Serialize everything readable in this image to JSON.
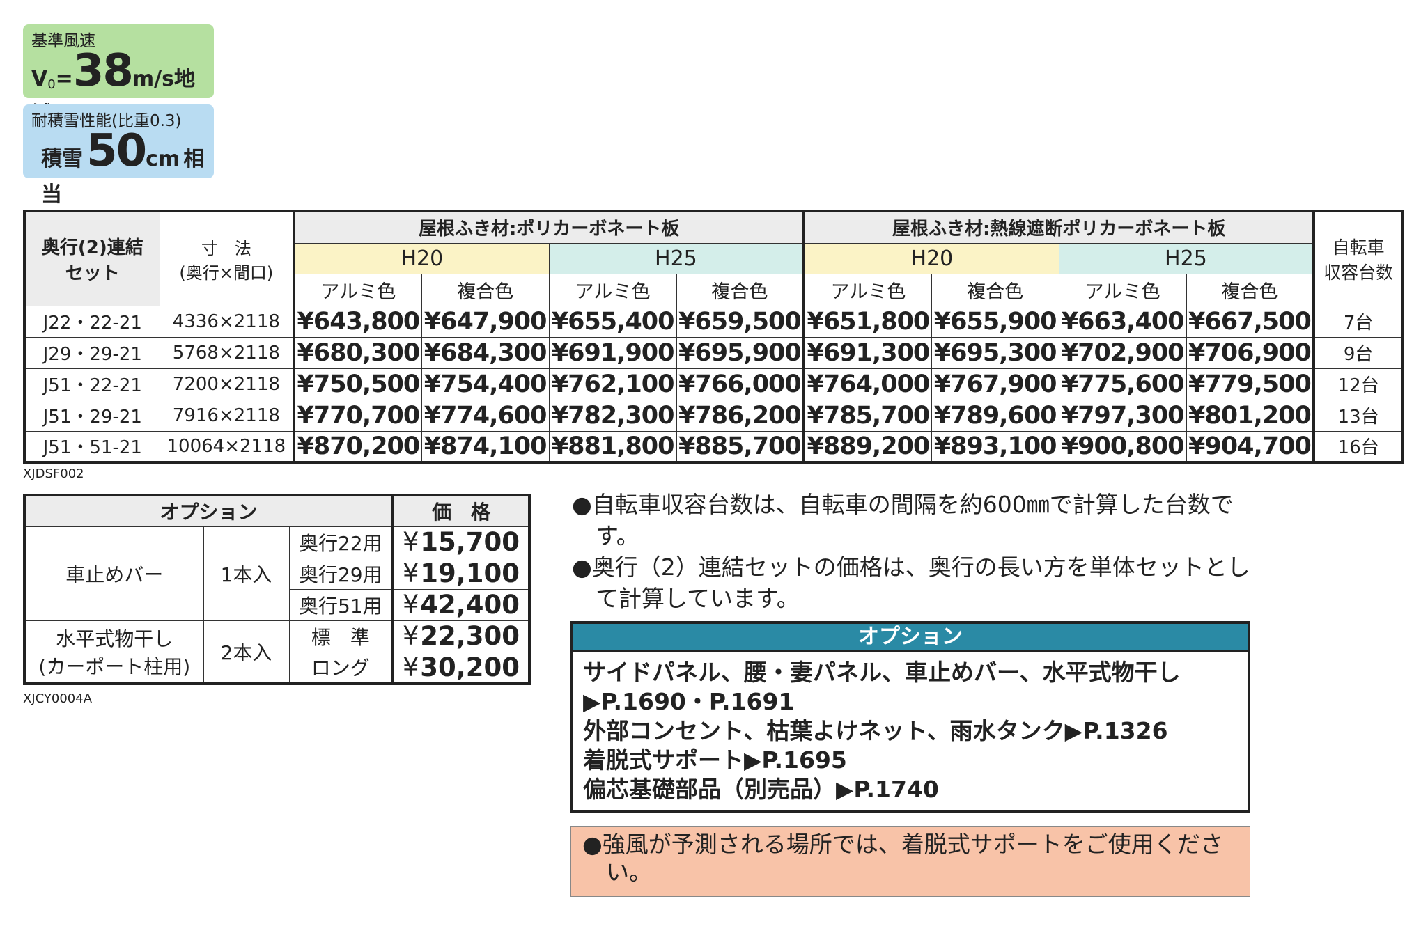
{
  "badges": {
    "wind": {
      "label": "基準風速",
      "prefix": "V",
      "prefix_sub": "0",
      "equals": "=",
      "value": "38",
      "unit": "m/s地域"
    },
    "snow": {
      "label": "耐積雪性能(比重0.3)",
      "prefix": "積雪",
      "value": "50",
      "unit": "cm",
      "suffix": "相当"
    }
  },
  "main_table": {
    "col1": [
      "奥行(2)連結",
      "セット"
    ],
    "col2": [
      "寸　法",
      "(奥行×間口)"
    ],
    "groups": [
      {
        "title": "屋根ふき材:ポリカーボネート板",
        "heights": [
          "H20",
          "H25"
        ]
      },
      {
        "title": "屋根ふき材:熱線遮断ポリカーボネート板",
        "heights": [
          "H20",
          "H25"
        ]
      }
    ],
    "colors": [
      "アルミ色",
      "複合色"
    ],
    "last_col": [
      "自転車",
      "収容台数"
    ],
    "rows": [
      {
        "model": "J22・22-21",
        "size": "4336×2118",
        "prices": [
          "¥643,800",
          "¥647,900",
          "¥655,400",
          "¥659,500",
          "¥651,800",
          "¥655,900",
          "¥663,400",
          "¥667,500"
        ],
        "capacity": "7台"
      },
      {
        "model": "J29・29-21",
        "size": "5768×2118",
        "prices": [
          "¥680,300",
          "¥684,300",
          "¥691,900",
          "¥695,900",
          "¥691,300",
          "¥695,300",
          "¥702,900",
          "¥706,900"
        ],
        "capacity": "9台"
      },
      {
        "model": "J51・22-21",
        "size": "7200×2118",
        "prices": [
          "¥750,500",
          "¥754,400",
          "¥762,100",
          "¥766,000",
          "¥764,000",
          "¥767,900",
          "¥775,600",
          "¥779,500"
        ],
        "capacity": "12台"
      },
      {
        "model": "J51・29-21",
        "size": "7916×2118",
        "prices": [
          "¥770,700",
          "¥774,600",
          "¥782,300",
          "¥786,200",
          "¥785,700",
          "¥789,600",
          "¥797,300",
          "¥801,200"
        ],
        "capacity": "13台"
      },
      {
        "model": "J51・51-21",
        "size": "10064×2118",
        "prices": [
          "¥870,200",
          "¥874,100",
          "¥881,800",
          "¥885,700",
          "¥889,200",
          "¥893,100",
          "¥900,800",
          "¥904,700"
        ],
        "capacity": "16台"
      }
    ],
    "code": "XJDSF002"
  },
  "options_table": {
    "header": [
      "オプション",
      "価　格"
    ],
    "currency": "¥",
    "groups": [
      {
        "name": [
          "車止めバー"
        ],
        "qty": "1本入",
        "items": [
          {
            "label": "奥行22用",
            "price": "15,700"
          },
          {
            "label": "奥行29用",
            "price": "19,100"
          },
          {
            "label": "奥行51用",
            "price": "42,400"
          }
        ]
      },
      {
        "name": [
          "水平式物干し",
          "(カーポート柱用)"
        ],
        "qty": "2本入",
        "items": [
          {
            "label": "標　準",
            "price": "22,300"
          },
          {
            "label": "ロング",
            "price": "30,200"
          }
        ]
      }
    ],
    "code": "XJCY0004A"
  },
  "bullet": "●",
  "notes": [
    "自転車収容台数は、自転車の間隔を約600㎜で計算した台数です。",
    "奥行（2）連結セットの価格は、奥行の長い方を単体セットとして計算しています。"
  ],
  "option_box": {
    "title": "オプション",
    "lines": [
      "サイドパネル、腰・妻パネル、車止めバー、水平式物干し▶P.1690・P.1691",
      "外部コンセント、枯葉よけネット、雨水タンク▶P.1326",
      "着脱式サポート▶P.1695",
      "偏芯基礎部品（別売品）▶P.1740"
    ]
  },
  "warning": "強風が予測される場所では、着脱式サポートをご使用ください。"
}
